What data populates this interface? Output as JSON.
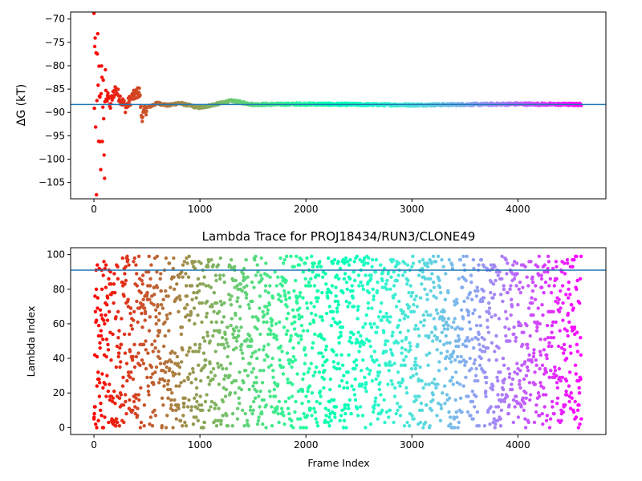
{
  "chart_data": [
    {
      "type": "scatter",
      "title": "",
      "xlabel": "",
      "ylabel": "ΔG (kT)",
      "xlim": [
        -220,
        4830
      ],
      "ylim": [
        -108.5,
        -68.5
      ],
      "xticks": [
        0,
        1000,
        2000,
        3000,
        4000
      ],
      "yticks": [
        -105,
        -100,
        -95,
        -90,
        -85,
        -80,
        -75,
        -70
      ],
      "hline": -88.3,
      "hline_color": "#1f77b4",
      "colormap": "rainbow (red at frame 0 → violet at frame 4600)",
      "n_frames": 4600,
      "points": [
        [
          0,
          -70
        ],
        [
          10,
          -70
        ],
        [
          20,
          -80
        ],
        [
          5,
          -90
        ],
        [
          15,
          -100
        ],
        [
          25,
          -108
        ],
        [
          30,
          -84
        ],
        [
          35,
          -76
        ],
        [
          40,
          -88
        ],
        [
          45,
          -95
        ],
        [
          50,
          -78
        ],
        [
          55,
          -87
        ],
        [
          60,
          -92
        ],
        [
          65,
          -99
        ],
        [
          70,
          -85
        ],
        [
          80,
          -90
        ],
        [
          90,
          -86
        ],
        [
          100,
          -102
        ],
        [
          110,
          -83
        ],
        [
          120,
          -88
        ],
        [
          130,
          -85
        ],
        [
          150,
          -89
        ],
        [
          170,
          -87
        ],
        [
          200,
          -85
        ],
        [
          250,
          -87
        ],
        [
          300,
          -89
        ],
        [
          350,
          -87
        ],
        [
          400,
          -86
        ],
        [
          430,
          -85.5
        ],
        [
          450,
          -91
        ],
        [
          500,
          -89
        ],
        [
          600,
          -88
        ],
        [
          700,
          -88.5
        ],
        [
          800,
          -88
        ],
        [
          1000,
          -89
        ],
        [
          1200,
          -88
        ],
        [
          1300,
          -87.5
        ],
        [
          1500,
          -88.3
        ],
        [
          2000,
          -88.2
        ],
        [
          3000,
          -88.4
        ],
        [
          4000,
          -88.2
        ],
        [
          4600,
          -88.3
        ]
      ]
    },
    {
      "type": "scatter",
      "title": "Lambda Trace for PROJ18434/RUN3/CLONE49",
      "xlabel": "Frame Index",
      "ylabel": "Lambda Index",
      "xlim": [
        -220,
        4830
      ],
      "ylim": [
        -4,
        104
      ],
      "xticks": [
        0,
        1000,
        2000,
        3000,
        4000
      ],
      "yticks": [
        0,
        20,
        40,
        60,
        80,
        100
      ],
      "hline": 91,
      "hline_color": "#1f77b4",
      "colormap": "rainbow (red at frame 0 → violet at frame 4600)",
      "n_frames": 4600,
      "lambda_range": [
        0,
        99
      ]
    }
  ]
}
